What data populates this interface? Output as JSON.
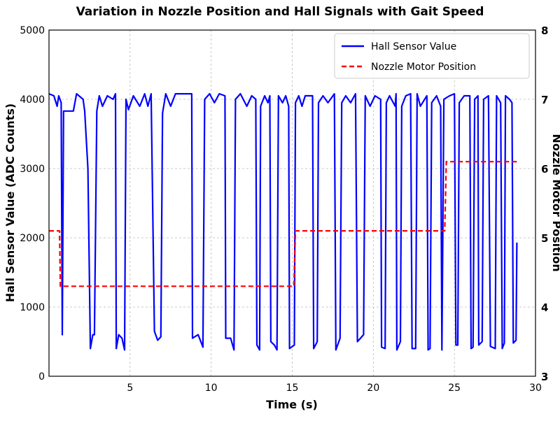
{
  "chart_data": {
    "type": "line",
    "title": "Variation in Nozzle Position and Hall Signals with Gait Speed",
    "xlabel": "Time (s)",
    "ylabel": "Hall Sensor Value (ADC Counts)",
    "y2label": "Nozzle Motor Position",
    "xlim": [
      0,
      30
    ],
    "ylim": [
      0,
      5000
    ],
    "y2lim": [
      3,
      8
    ],
    "xticks": [
      "5",
      "10",
      "15",
      "20",
      "25",
      "30"
    ],
    "yticks": [
      "0",
      "1000",
      "2000",
      "3000",
      "4000",
      "5000"
    ],
    "y2ticks": [
      "3",
      "4",
      "5",
      "6",
      "7",
      "8"
    ],
    "grid": true,
    "legend_position": "top-right",
    "series": [
      {
        "name": "Hall Sensor Value",
        "axis": "left",
        "color": "#0000ff",
        "style": "solid",
        "x": [
          0,
          0.3,
          0.5,
          0.6,
          0.75,
          0.82,
          0.9,
          1.5,
          1.7,
          2.1,
          2.2,
          2.4,
          2.55,
          2.7,
          2.8,
          2.95,
          3.1,
          3.3,
          3.6,
          3.95,
          4.1,
          4.15,
          4.3,
          4.5,
          4.66,
          4.75,
          4.9,
          5.2,
          5.6,
          5.9,
          6.1,
          6.3,
          6.5,
          6.7,
          6.9,
          7.0,
          7.2,
          7.5,
          7.8,
          8.2,
          8.8,
          8.85,
          9.2,
          9.49,
          9.6,
          9.9,
          10.2,
          10.5,
          10.85,
          10.9,
          11.2,
          11.41,
          11.5,
          11.8,
          12.2,
          12.5,
          12.75,
          12.82,
          12.99,
          13.05,
          13.3,
          13.5,
          13.62,
          13.68,
          13.9,
          14.06,
          14.15,
          14.4,
          14.6,
          14.78,
          14.83,
          15.13,
          15.2,
          15.4,
          15.6,
          15.8,
          16.25,
          16.32,
          16.54,
          16.62,
          16.9,
          17.2,
          17.6,
          17.69,
          17.95,
          18.05,
          18.3,
          18.6,
          18.9,
          19.02,
          19.4,
          19.5,
          19.8,
          20.1,
          20.45,
          20.51,
          20.73,
          20.8,
          21.0,
          21.35,
          21.4,
          21.45,
          21.67,
          21.75,
          22.0,
          22.3,
          22.39,
          22.61,
          22.7,
          22.9,
          23.3,
          23.38,
          23.5,
          23.6,
          23.9,
          24.15,
          24.23,
          24.35,
          24.7,
          25.0,
          25.09,
          25.21,
          25.3,
          25.6,
          25.95,
          26.03,
          26.15,
          26.25,
          26.45,
          26.5,
          26.71,
          26.8,
          27.1,
          27.22,
          27.52,
          27.6,
          27.85,
          27.95,
          28.08,
          28.15,
          28.4,
          28.55,
          28.63,
          28.8,
          28.85
        ],
        "y": [
          4080,
          4050,
          3900,
          4050,
          3950,
          600,
          3830,
          3830,
          4080,
          4000,
          3830,
          3000,
          400,
          600,
          600,
          3830,
          4050,
          3900,
          4050,
          4000,
          4080,
          400,
          600,
          550,
          380,
          4000,
          3850,
          4050,
          3900,
          4080,
          3900,
          4080,
          650,
          520,
          570,
          3800,
          4080,
          3900,
          4080,
          4080,
          4080,
          550,
          600,
          420,
          4000,
          4080,
          3950,
          4080,
          4050,
          550,
          550,
          380,
          4000,
          4080,
          3900,
          4050,
          4000,
          450,
          380,
          3900,
          4050,
          3950,
          4050,
          500,
          450,
          380,
          4050,
          3950,
          4050,
          3900,
          400,
          450,
          3950,
          4050,
          3900,
          4050,
          4050,
          400,
          500,
          3950,
          4050,
          3950,
          4080,
          380,
          550,
          3950,
          4050,
          3950,
          4080,
          500,
          600,
          4050,
          3900,
          4050,
          4000,
          420,
          400,
          3950,
          4050,
          3900,
          4080,
          380,
          500,
          3900,
          4050,
          4080,
          400,
          400,
          4080,
          3900,
          4050,
          380,
          400,
          3950,
          4050,
          3900,
          380,
          4000,
          4050,
          4080,
          450,
          450,
          3950,
          4050,
          4050,
          400,
          420,
          4000,
          4050,
          450,
          500,
          4000,
          4050,
          430,
          400,
          4050,
          3950,
          400,
          480,
          4050,
          4000,
          3950,
          480,
          520,
          1930
        ]
      },
      {
        "name": "Nozzle Motor Position",
        "axis": "right",
        "color": "#ff0000",
        "style": "dashed",
        "x": [
          0,
          0.65,
          0.7,
          15.1,
          15.2,
          24.4,
          24.5,
          28.85
        ],
        "y": [
          5.1,
          5.1,
          4.3,
          4.3,
          5.1,
          5.1,
          6.1,
          6.1
        ]
      }
    ]
  }
}
